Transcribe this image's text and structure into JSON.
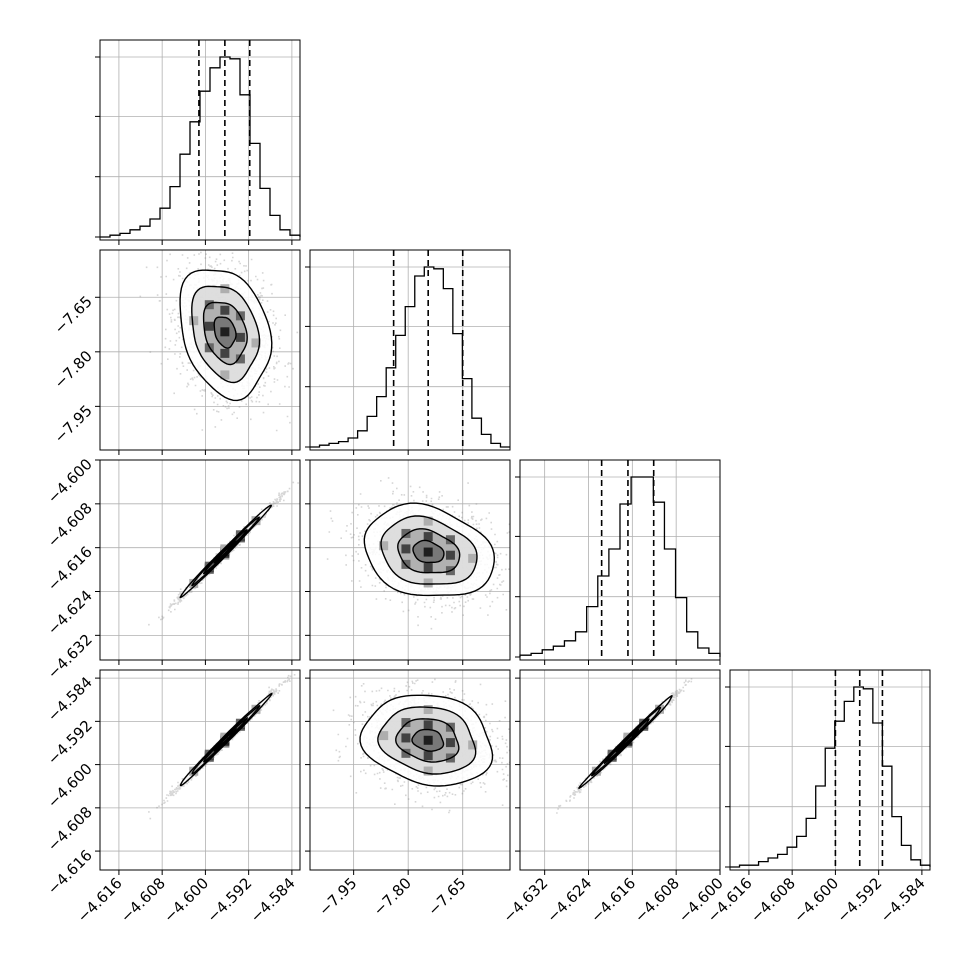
{
  "chart_data": {
    "type": "corner",
    "title": "",
    "parameters": 4,
    "colors": {
      "line": "#000000",
      "grid": "#b0b0b0",
      "quantile": "#000000",
      "density": "#000000",
      "points": "#8a8a8a"
    },
    "grid": true,
    "quantile_style": "dashed",
    "ranges": [
      [
        -4.6195,
        -4.5825
      ],
      [
        -8.07,
        -7.52
      ],
      [
        -4.6365,
        -4.6
      ],
      [
        -4.6195,
        -4.5825
      ]
    ],
    "ticks": [
      [
        "−4.616",
        "−4.608",
        "−4.600",
        "−4.592",
        "−4.584"
      ],
      [
        "−7.95",
        "−7.80",
        "−7.65"
      ],
      [
        "−4.632",
        "−4.624",
        "−4.616",
        "−4.608",
        "−4.600"
      ],
      [
        "−4.616",
        "−4.608",
        "−4.600",
        "−4.592",
        "−4.584"
      ]
    ],
    "tick_values": [
      [
        -4.616,
        -4.608,
        -4.6,
        -4.592,
        -4.584
      ],
      [
        -7.95,
        -7.8,
        -7.65
      ],
      [
        -4.632,
        -4.624,
        -4.616,
        -4.608,
        -4.6
      ],
      [
        -4.616,
        -4.608,
        -4.6,
        -4.592,
        -4.584
      ]
    ],
    "diagonal": [
      {
        "quantiles": [
          -4.6012,
          -4.5964,
          -4.5918
        ],
        "bins": [
          -4.6195,
          -4.5825
        ],
        "counts": [
          0,
          1,
          2,
          4,
          6,
          10,
          16,
          28,
          46,
          64,
          81,
          94,
          100,
          99,
          79,
          52,
          27,
          12,
          4,
          1
        ]
      },
      {
        "quantiles": [
          -7.84,
          -7.745,
          -7.65
        ],
        "bins": [
          -8.07,
          -7.52
        ],
        "counts": [
          0,
          1,
          2,
          3,
          5,
          9,
          17,
          28,
          44,
          62,
          78,
          95,
          100,
          99,
          88,
          63,
          38,
          16,
          7,
          2,
          0
        ]
      },
      {
        "quantiles": [
          -4.6216,
          -4.6168,
          -4.6121
        ],
        "bins": [
          -4.6365,
          -4.6
        ],
        "counts": [
          1,
          2,
          4,
          6,
          9,
          14,
          28,
          45,
          60,
          85,
          100,
          100,
          86,
          60,
          33,
          14,
          5,
          2
        ]
      },
      {
        "quantiles": [
          -4.6,
          -4.5955,
          -4.5913
        ],
        "bins": [
          -4.6195,
          -4.5825
        ],
        "counts": [
          0,
          1,
          1,
          3,
          5,
          7,
          11,
          17,
          27,
          45,
          66,
          81,
          92,
          100,
          99,
          80,
          56,
          28,
          12,
          4,
          1
        ]
      }
    ],
    "pairs": [
      {
        "x": 0,
        "y": 1,
        "x_mean": -4.5964,
        "y_mean": -7.745,
        "x_sd": 0.004,
        "y_sd": 0.085,
        "corr": -0.25
      },
      {
        "x": 0,
        "y": 2,
        "x_mean": -4.5964,
        "y_mean": -4.6168,
        "x_sd": 0.004,
        "y_sd": 0.004,
        "corr": 0.995
      },
      {
        "x": 1,
        "y": 2,
        "x_mean": -7.745,
        "y_mean": -4.6168,
        "x_sd": 0.085,
        "y_sd": 0.004,
        "corr": -0.2
      },
      {
        "x": 0,
        "y": 3,
        "x_mean": -4.5964,
        "y_mean": -4.5955,
        "x_sd": 0.004,
        "y_sd": 0.004,
        "corr": 0.995
      },
      {
        "x": 1,
        "y": 3,
        "x_mean": -7.745,
        "y_mean": -4.5955,
        "x_sd": 0.085,
        "y_sd": 0.004,
        "corr": -0.15
      },
      {
        "x": 2,
        "y": 3,
        "x_mean": -4.6168,
        "y_mean": -4.5955,
        "x_sd": 0.004,
        "y_sd": 0.004,
        "corr": 0.995
      }
    ]
  }
}
